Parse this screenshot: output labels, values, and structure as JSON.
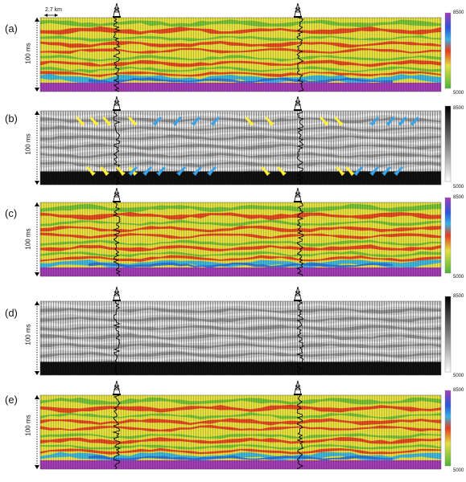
{
  "scale_bar": {
    "label": "2.7 km"
  },
  "time_label": "100 ms",
  "panels": [
    {
      "label": "(a)",
      "kind": "color",
      "cbar_top": "8500",
      "cbar_bottom": "5000"
    },
    {
      "label": "(b)",
      "kind": "gray",
      "cbar_top": "8500",
      "cbar_bottom": "5000",
      "arrows": true
    },
    {
      "label": "(c)",
      "kind": "color",
      "cbar_top": "8500",
      "cbar_bottom": "5000"
    },
    {
      "label": "(d)",
      "kind": "gray",
      "cbar_top": "8500",
      "cbar_bottom": "5000"
    },
    {
      "label": "(e)",
      "kind": "color",
      "cbar_top": "8500",
      "cbar_bottom": "5000"
    }
  ],
  "colors": {
    "yellow": "#e6e040",
    "red": "#e23b1f",
    "green": "#6bbf3a",
    "blue": "#2a6fd8",
    "cyan": "#38b3e6",
    "magenta": "#a23db5",
    "arrow_yellow": "#ffef3a",
    "arrow_blue": "#3aa3e8"
  }
}
